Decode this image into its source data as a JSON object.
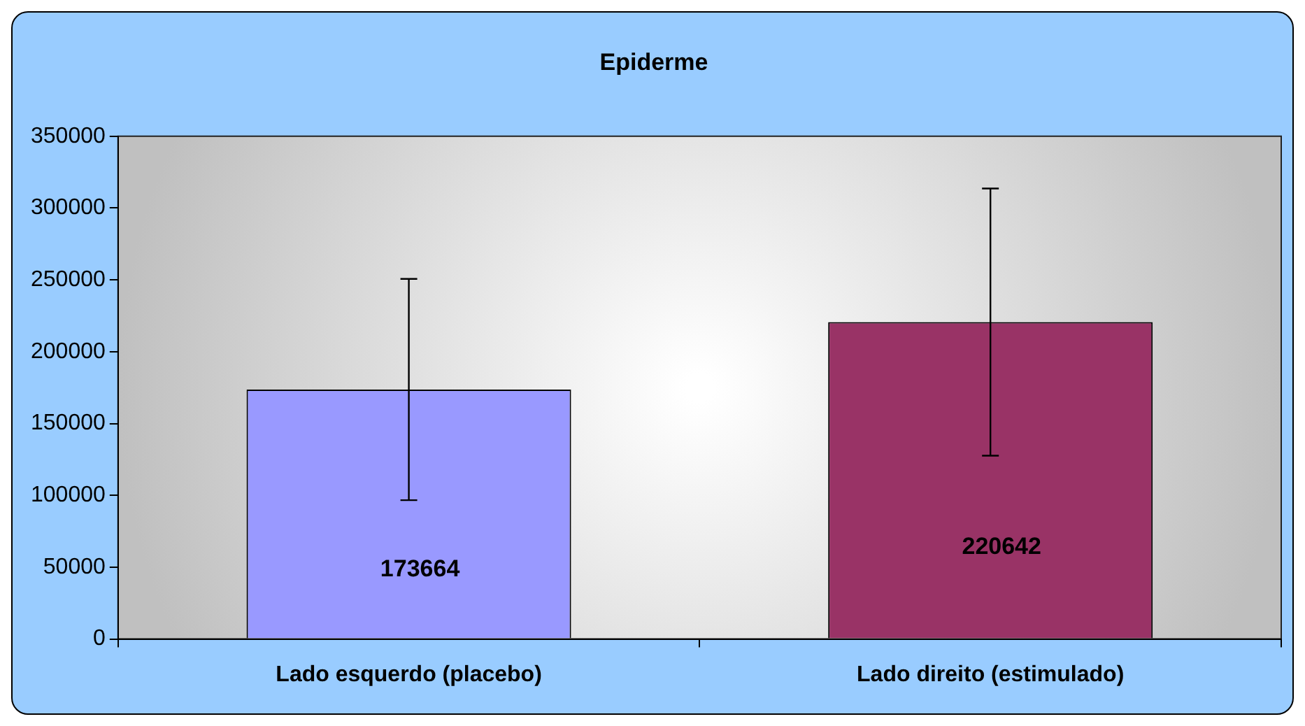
{
  "chart_data": {
    "type": "bar",
    "title": "Epiderme",
    "categories": [
      "Lado esquerdo (placebo)",
      "Lado direito (estimulado)"
    ],
    "values": [
      173664,
      220642
    ],
    "colors": [
      "#9999ff",
      "#993366"
    ],
    "errors": [
      77000,
      93000
    ],
    "data_labels": true,
    "ylim": [
      0,
      350000
    ],
    "yticks": [
      0,
      50000,
      100000,
      150000,
      200000,
      250000,
      300000,
      350000
    ],
    "grid": false,
    "legend": false
  }
}
